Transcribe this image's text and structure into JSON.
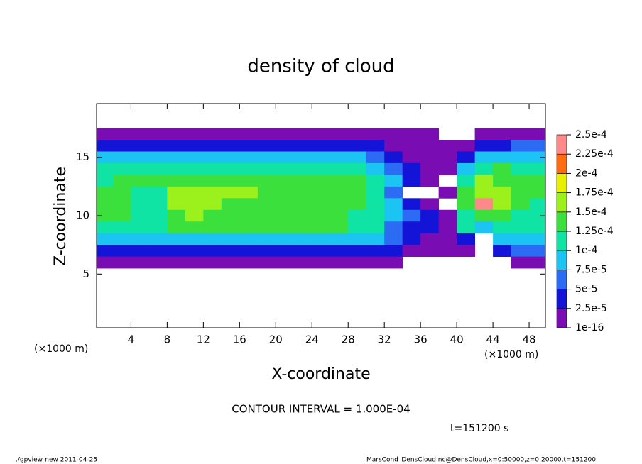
{
  "chart_data": {
    "type": "heatmap",
    "title": "density of cloud",
    "x_label": "X-coordinate",
    "y_label": "Z-coordinate",
    "x_unit": "(×1000 m)",
    "y_unit": "(×1000 m)",
    "xlim": [
      0.2,
      49.8
    ],
    "ylim": [
      0.4,
      19.6
    ],
    "xticks": [
      4,
      8,
      12,
      16,
      20,
      24,
      28,
      32,
      36,
      40,
      44,
      48
    ],
    "yticks": [
      5,
      10,
      15
    ],
    "x": [
      1,
      3,
      5,
      7,
      9,
      11,
      13,
      15,
      17,
      19,
      21,
      23,
      25,
      27,
      29,
      31,
      33,
      35,
      37,
      39,
      41,
      43,
      45,
      47,
      49
    ],
    "y": [
      17,
      16,
      15,
      14,
      13,
      12,
      11,
      10,
      9,
      8,
      7,
      6
    ],
    "values": [
      [
        1e-05,
        1e-05,
        1e-05,
        1e-05,
        1e-05,
        1e-05,
        1e-05,
        1e-05,
        1e-05,
        1e-05,
        1e-05,
        1e-05,
        1e-05,
        1e-05,
        1e-05,
        1e-05,
        1e-05,
        1e-05,
        1e-05,
        null,
        null,
        1e-05,
        1e-05,
        1e-05,
        1e-05
      ],
      [
        3.5e-05,
        3.5e-05,
        3.5e-05,
        3.5e-05,
        3.5e-05,
        3.5e-05,
        3.5e-05,
        3.5e-05,
        3.5e-05,
        3.5e-05,
        3.5e-05,
        3.5e-05,
        3.5e-05,
        3.5e-05,
        3.5e-05,
        3.5e-05,
        1e-05,
        1e-05,
        1e-05,
        1e-05,
        1e-05,
        3.5e-05,
        3.5e-05,
        6e-05,
        6e-05
      ],
      [
        8.5e-05,
        8.5e-05,
        8.5e-05,
        8.5e-05,
        8.5e-05,
        8.5e-05,
        8.5e-05,
        8.5e-05,
        8.5e-05,
        8.5e-05,
        8.5e-05,
        8.5e-05,
        8.5e-05,
        8.5e-05,
        8.5e-05,
        6e-05,
        3.5e-05,
        1e-05,
        1e-05,
        1e-05,
        3.5e-05,
        8.5e-05,
        8.5e-05,
        8.5e-05,
        8.5e-05
      ],
      [
        0.00011,
        0.00011,
        0.00011,
        0.00011,
        0.00011,
        0.00011,
        0.00011,
        0.00011,
        0.00011,
        0.00011,
        0.00011,
        0.00011,
        0.00011,
        0.00011,
        0.00011,
        8.5e-05,
        6e-05,
        3.5e-05,
        1e-05,
        1e-05,
        8.5e-05,
        0.00011,
        0.000135,
        0.00011,
        0.00011
      ],
      [
        0.00011,
        0.000135,
        0.000135,
        0.000135,
        0.000135,
        0.000135,
        0.000135,
        0.000135,
        0.000135,
        0.000135,
        0.000135,
        0.000135,
        0.000135,
        0.000135,
        0.000135,
        0.00011,
        8.5e-05,
        3.5e-05,
        1e-05,
        null,
        0.00011,
        0.00016,
        0.000135,
        0.000135,
        0.000135
      ],
      [
        0.000135,
        0.000135,
        0.00011,
        0.00011,
        0.00016,
        0.00016,
        0.00016,
        0.00016,
        0.00016,
        0.000135,
        0.000135,
        0.000135,
        0.000135,
        0.000135,
        0.000135,
        0.00011,
        6e-05,
        null,
        null,
        1e-05,
        0.000135,
        0.00016,
        0.00016,
        0.000135,
        0.000135
      ],
      [
        0.000135,
        0.000135,
        0.00011,
        0.00011,
        0.00016,
        0.00016,
        0.00016,
        0.000135,
        0.000135,
        0.000135,
        0.000135,
        0.000135,
        0.000135,
        0.000135,
        0.000135,
        0.00011,
        8.5e-05,
        3.5e-05,
        1e-05,
        null,
        0.000135,
        0.00024,
        0.00016,
        0.000135,
        0.00011
      ],
      [
        0.000135,
        0.000135,
        0.00011,
        0.00011,
        0.000135,
        0.00016,
        0.000135,
        0.000135,
        0.000135,
        0.000135,
        0.000135,
        0.000135,
        0.000135,
        0.000135,
        0.00011,
        0.00011,
        8.5e-05,
        6e-05,
        3.5e-05,
        1e-05,
        0.00011,
        0.000135,
        0.000135,
        0.00011,
        0.00011
      ],
      [
        0.00011,
        0.00011,
        0.00011,
        0.00011,
        0.000135,
        0.000135,
        0.000135,
        0.000135,
        0.000135,
        0.000135,
        0.000135,
        0.000135,
        0.000135,
        0.000135,
        0.00011,
        0.00011,
        6e-05,
        3.5e-05,
        3.5e-05,
        1e-05,
        0.00011,
        8.5e-05,
        0.00011,
        0.00011,
        0.00011
      ],
      [
        8.5e-05,
        8.5e-05,
        8.5e-05,
        8.5e-05,
        8.5e-05,
        8.5e-05,
        8.5e-05,
        8.5e-05,
        8.5e-05,
        8.5e-05,
        8.5e-05,
        8.5e-05,
        8.5e-05,
        8.5e-05,
        8.5e-05,
        8.5e-05,
        6e-05,
        3.5e-05,
        1e-05,
        1e-05,
        3.5e-05,
        null,
        8.5e-05,
        8.5e-05,
        8.5e-05
      ],
      [
        3.5e-05,
        3.5e-05,
        3.5e-05,
        3.5e-05,
        3.5e-05,
        3.5e-05,
        3.5e-05,
        3.5e-05,
        3.5e-05,
        3.5e-05,
        3.5e-05,
        3.5e-05,
        3.5e-05,
        3.5e-05,
        3.5e-05,
        3.5e-05,
        3.5e-05,
        1e-05,
        1e-05,
        1e-05,
        1e-05,
        null,
        3.5e-05,
        6e-05,
        6e-05
      ],
      [
        1e-05,
        1e-05,
        1e-05,
        1e-05,
        1e-05,
        1e-05,
        1e-05,
        1e-05,
        1e-05,
        1e-05,
        1e-05,
        1e-05,
        1e-05,
        1e-05,
        1e-05,
        1e-05,
        1e-05,
        null,
        null,
        null,
        null,
        null,
        null,
        1e-05,
        1e-05
      ]
    ],
    "colorbar": {
      "levels": [
        {
          "value": 1e-16,
          "label": "1e-16"
        },
        {
          "value": 2.5e-05,
          "label": "2.5e-5"
        },
        {
          "value": 5e-05,
          "label": "5e-5"
        },
        {
          "value": 7.5e-05,
          "label": "7.5e-5"
        },
        {
          "value": 0.0001,
          "label": "1e-4"
        },
        {
          "value": 0.000125,
          "label": "1.25e-4"
        },
        {
          "value": 0.00015,
          "label": "1.5e-4"
        },
        {
          "value": 0.000175,
          "label": "1.75e-4"
        },
        {
          "value": 0.0002,
          "label": "2e-4"
        },
        {
          "value": 0.000225,
          "label": "2.25e-4"
        },
        {
          "value": 0.00025,
          "label": "2.5e-4"
        }
      ],
      "colors": [
        "#7a0cb4",
        "#1414d8",
        "#2c6cf4",
        "#1cc4f4",
        "#10e4a4",
        "#3ce03c",
        "#9cf01c",
        "#e8f000",
        "#ff6c10",
        "#ff8888"
      ]
    },
    "contour_interval": "CONTOUR INTERVAL = 1.000E-04",
    "time": "t=151200 s",
    "footer_left": "./gpview-new  2011-04-25",
    "footer_right": "MarsCond_DensCloud.nc@DensCloud,x=0:50000,z=0:20000,t=151200"
  }
}
